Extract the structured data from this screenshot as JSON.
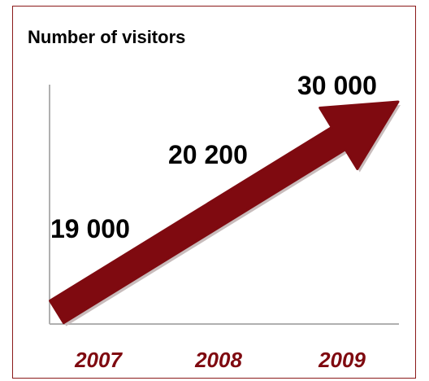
{
  "title": "Number of visitors",
  "colors": {
    "arrow": "#7f0a10",
    "arrow_shadow": "#c8bcbc",
    "axis": "#b0b0b0",
    "frame": "#8b1a1a",
    "year_text": "#7f0a10",
    "value_text": "#000000"
  },
  "chart_data": {
    "type": "line",
    "title": "Number of visitors",
    "categories": [
      "2007",
      "2008",
      "2009"
    ],
    "series": [
      {
        "values": [
          19000,
          20200,
          30000
        ]
      }
    ],
    "value_labels": [
      "19 000",
      "20 200",
      "30 000"
    ],
    "x_tick_labels": [
      "2007",
      "2008",
      "2009"
    ],
    "xlabel": "",
    "ylabel": "",
    "grid": false,
    "legend": "none",
    "style": "single upward arrow"
  }
}
